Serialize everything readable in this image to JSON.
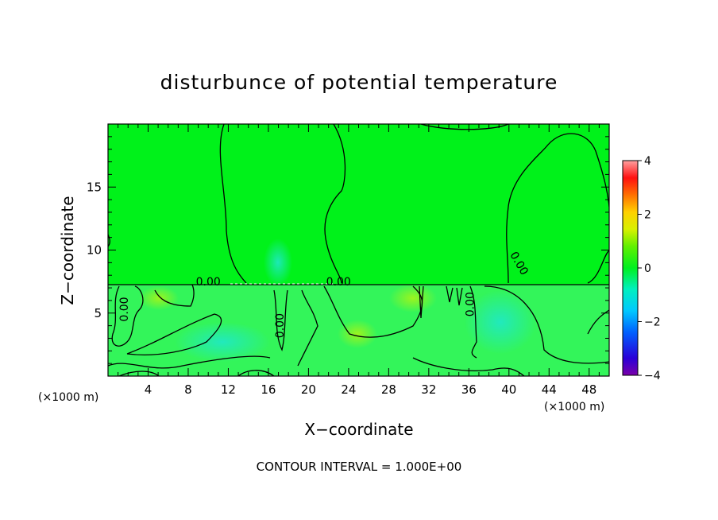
{
  "chart_data": {
    "type": "heatmap",
    "title": "disturbunce of potential temperature",
    "xlabel": "X−coordinate",
    "ylabel": "Z−coordinate",
    "x_unit_left": "(×1000 m)",
    "x_unit_right": "(×1000 m)",
    "xlim": [
      0,
      50
    ],
    "ylim": [
      0,
      20
    ],
    "x_ticks": [
      4,
      8,
      12,
      16,
      20,
      24,
      28,
      32,
      36,
      40,
      44,
      48
    ],
    "y_ticks": [
      5,
      10,
      15
    ],
    "x_minor_step": 1,
    "y_minor_step": 1,
    "colorbar": {
      "min": -4,
      "max": 4,
      "ticks": [
        4,
        2,
        0,
        -2,
        -4
      ],
      "tick_labels": [
        "4",
        "2",
        "0",
        "−2",
        "−4"
      ]
    },
    "contour_labels": [
      {
        "text": "0.00",
        "x": 10,
        "z": 7.2,
        "rotate": 0
      },
      {
        "text": "0.00",
        "x": 23,
        "z": 7.2,
        "rotate": 0
      },
      {
        "text": "0.00",
        "x": 2,
        "z": 5.3,
        "rotate": -90
      },
      {
        "text": "0.00",
        "x": 17.5,
        "z": 4.0,
        "rotate": -90
      },
      {
        "text": "0.00",
        "x": 36.5,
        "z": 5.7,
        "rotate": -90
      },
      {
        "text": "0.00",
        "x": 40.7,
        "z": 8.8,
        "rotate": 60
      }
    ],
    "field_description_levels": {
      "upper_region_value": 0.3,
      "lower_region_value": -0.3,
      "boundary_height_z": 7.2
    },
    "footer": "CONTOUR INTERVAL = 1.000E+00",
    "colors": {
      "upper": "#00f21a",
      "lower": "#2ff65a",
      "cyan_patch": "#25f0b0",
      "yellow_patch": "#9cf41c"
    }
  }
}
